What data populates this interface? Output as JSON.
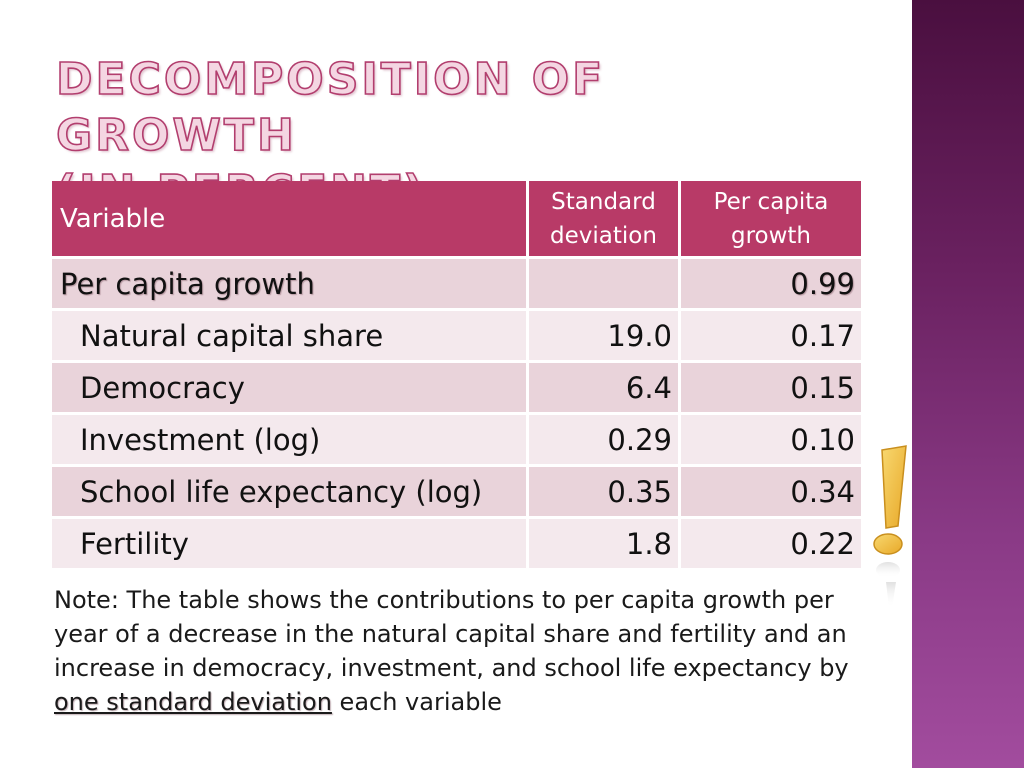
{
  "slide": {
    "title_line1": "Decomposition of Growth",
    "title_line2": "(in percent)"
  },
  "table": {
    "headers": {
      "variable": "Variable",
      "std_dev_line1": "Standard",
      "std_dev_line2": "deviation",
      "growth_line1": "Per capita",
      "growth_line2": "growth"
    },
    "rows": [
      {
        "variable": "Per capita growth",
        "std_dev": "",
        "growth": "0.99"
      },
      {
        "variable": "Natural capital share",
        "std_dev": "19.0",
        "growth": "0.17"
      },
      {
        "variable": "Democracy",
        "std_dev": "6.4",
        "growth": "0.15"
      },
      {
        "variable": "Investment (log)",
        "std_dev": "0.29",
        "growth": "0.10"
      },
      {
        "variable": "School life expectancy (log)",
        "std_dev": "0.35",
        "growth": "0.34"
      },
      {
        "variable": "Fertility",
        "std_dev": "1.8",
        "growth": "0.22"
      }
    ]
  },
  "note": {
    "prefix": "Note: The table shows the contributions to per capita growth per year of a decrease in the natural capital share and fertility and an increase in democracy, investment, and school life expectancy by ",
    "highlight": "one standard deviation",
    "suffix": " each variable"
  },
  "colors": {
    "header_bg": "#b83a67",
    "row_odd": "#e9d3da",
    "row_even": "#f4e9ed",
    "sidebar": "#6a2160",
    "exclamation": "#f5c04a"
  },
  "icons": {
    "exclamation": "exclamation-mark-icon"
  }
}
